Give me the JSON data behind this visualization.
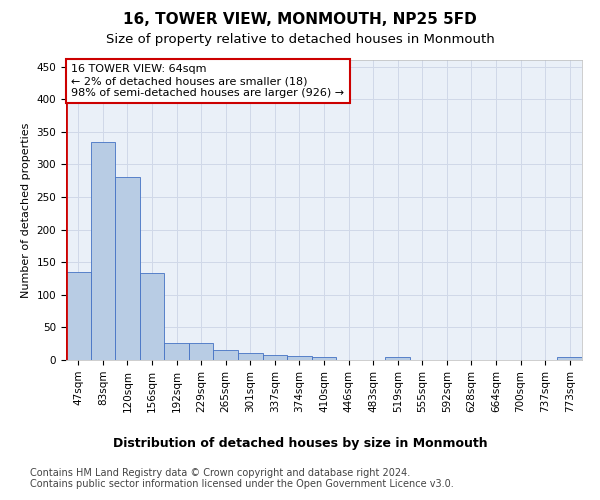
{
  "title1": "16, TOWER VIEW, MONMOUTH, NP25 5FD",
  "title2": "Size of property relative to detached houses in Monmouth",
  "xlabel": "Distribution of detached houses by size in Monmouth",
  "ylabel": "Number of detached properties",
  "bar_labels": [
    "47sqm",
    "83sqm",
    "120sqm",
    "156sqm",
    "192sqm",
    "229sqm",
    "265sqm",
    "301sqm",
    "337sqm",
    "374sqm",
    "410sqm",
    "446sqm",
    "483sqm",
    "519sqm",
    "555sqm",
    "592sqm",
    "628sqm",
    "664sqm",
    "700sqm",
    "737sqm",
    "773sqm"
  ],
  "bar_values": [
    135,
    335,
    280,
    133,
    26,
    26,
    15,
    11,
    7,
    6,
    4,
    0,
    0,
    4,
    0,
    0,
    0,
    0,
    0,
    0,
    4
  ],
  "bar_color": "#b8cce4",
  "bar_edge_color": "#4472c4",
  "highlight_color": "#cc0000",
  "annotation_text": "16 TOWER VIEW: 64sqm\n← 2% of detached houses are smaller (18)\n98% of semi-detached houses are larger (926) →",
  "ylim": [
    0,
    460
  ],
  "yticks": [
    0,
    50,
    100,
    150,
    200,
    250,
    300,
    350,
    400,
    450
  ],
  "grid_color": "#d0d8e8",
  "bg_color": "#eaf0f8",
  "footer1": "Contains HM Land Registry data © Crown copyright and database right 2024.",
  "footer2": "Contains public sector information licensed under the Open Government Licence v3.0.",
  "title1_fontsize": 11,
  "title2_fontsize": 9.5,
  "xlabel_fontsize": 9,
  "ylabel_fontsize": 8,
  "tick_fontsize": 7.5,
  "annotation_fontsize": 8,
  "footer_fontsize": 7
}
